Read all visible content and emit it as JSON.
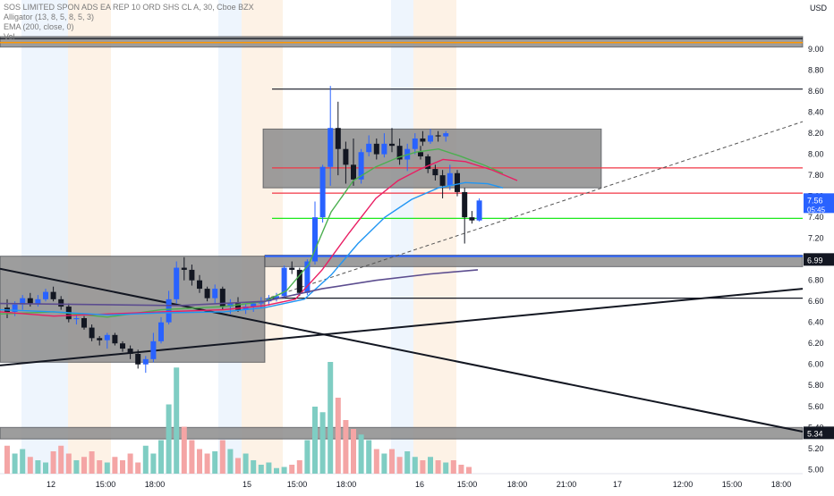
{
  "legend": {
    "title": "SOS LIMITED SPON ADS EA REP 10 ORD SHS CL A, 30, Cboe BZX",
    "alligator": "Alligator (13, 8, 5, 8, 5, 3)",
    "ema": "EMA (200, close, 0)",
    "vol": "Vol"
  },
  "currency": "USD",
  "colors": {
    "up": "#2962ff",
    "down": "#131722",
    "vol_up": "#7fcdc3",
    "vol_down": "#f4a5a5",
    "jaw": "#2196f3",
    "teeth": "#e91e63",
    "lips": "#4caf50",
    "ema": "#5c4d8f",
    "zone": "#8c8c8c",
    "hline_red": "#f23645",
    "hline_green": "#00e600",
    "premarket": "#eef5fd",
    "afterhours": "#fdf2e6"
  },
  "chart_data": {
    "type": "candlestick",
    "timeframe": "30",
    "symbol": "SOS LIMITED SPON ADS EA REP 10 ORD SHS CL A",
    "exchange": "Cboe BZX",
    "y_axis": {
      "ticks": [
        "5.00",
        "5.20",
        "5.40",
        "5.60",
        "5.80",
        "6.00",
        "6.20",
        "6.40",
        "6.60",
        "6.80",
        "7.00",
        "7.20",
        "7.40",
        "7.60",
        "7.80",
        "8.00",
        "8.20",
        "8.40",
        "8.60",
        "8.80",
        "9.00"
      ],
      "range": [
        4.96,
        9.4
      ]
    },
    "x_axis": {
      "labels": [
        "12",
        "15:00",
        "18:00",
        "15",
        "15:00",
        "18:00",
        "16",
        "15:00",
        "18:00",
        "21:00",
        "17",
        "12:00",
        "15:00",
        "18:00"
      ]
    },
    "last_price": {
      "value": "7.56",
      "countdown": "05:45"
    },
    "price_labels": [
      "6.99",
      "5.34"
    ],
    "candles": [
      [
        6.54,
        6.62,
        6.44,
        6.5
      ],
      [
        6.5,
        6.6,
        6.46,
        6.57
      ],
      [
        6.57,
        6.66,
        6.52,
        6.63
      ],
      [
        6.63,
        6.68,
        6.55,
        6.58
      ],
      [
        6.58,
        6.66,
        6.55,
        6.62
      ],
      [
        6.62,
        6.72,
        6.6,
        6.69
      ],
      [
        6.69,
        6.74,
        6.6,
        6.62
      ],
      [
        6.62,
        6.65,
        6.52,
        6.55
      ],
      [
        6.55,
        6.58,
        6.4,
        6.43
      ],
      [
        6.43,
        6.47,
        6.38,
        6.44
      ],
      [
        6.44,
        6.46,
        6.33,
        6.35
      ],
      [
        6.35,
        6.38,
        6.22,
        6.25
      ],
      [
        6.25,
        6.27,
        6.18,
        6.23
      ],
      [
        6.23,
        6.3,
        6.15,
        6.28
      ],
      [
        6.28,
        6.3,
        6.18,
        6.2
      ],
      [
        6.2,
        6.22,
        6.12,
        6.15
      ],
      [
        6.15,
        6.18,
        6.05,
        6.1
      ],
      [
        6.1,
        6.14,
        5.96,
        6.0
      ],
      [
        6.0,
        6.08,
        5.92,
        6.05
      ],
      [
        6.05,
        6.3,
        6.02,
        6.22
      ],
      [
        6.22,
        6.45,
        6.2,
        6.4
      ],
      [
        6.4,
        6.7,
        6.38,
        6.62
      ],
      [
        6.62,
        6.98,
        6.58,
        6.92
      ],
      [
        6.92,
        7.02,
        6.8,
        6.9
      ],
      [
        6.9,
        6.95,
        6.75,
        6.8
      ],
      [
        6.8,
        6.85,
        6.68,
        6.72
      ],
      [
        6.72,
        6.74,
        6.6,
        6.63
      ],
      [
        6.63,
        6.76,
        6.58,
        6.72
      ],
      [
        6.72,
        6.74,
        6.52,
        6.55
      ],
      [
        6.55,
        6.62,
        6.48,
        6.58
      ],
      [
        6.58,
        6.64,
        6.5,
        6.52
      ],
      [
        6.52,
        6.58,
        6.48,
        6.55
      ],
      [
        6.55,
        6.6,
        6.5,
        6.58
      ],
      [
        6.58,
        6.64,
        6.54,
        6.6
      ],
      [
        6.6,
        6.66,
        6.56,
        6.63
      ],
      [
        6.63,
        6.68,
        6.6,
        6.65
      ],
      [
        6.65,
        6.94,
        6.63,
        6.92
      ],
      [
        6.92,
        6.98,
        6.86,
        6.9
      ],
      [
        6.9,
        6.92,
        6.65,
        6.68
      ],
      [
        6.68,
        7.0,
        6.66,
        6.98
      ],
      [
        6.98,
        7.55,
        6.95,
        7.4
      ],
      [
        7.4,
        7.9,
        7.35,
        7.88
      ],
      [
        7.88,
        8.65,
        7.7,
        8.25
      ],
      [
        8.25,
        8.5,
        7.8,
        8.05
      ],
      [
        8.05,
        8.12,
        7.72,
        7.9
      ],
      [
        7.9,
        8.15,
        7.7,
        7.76
      ],
      [
        7.76,
        8.05,
        7.72,
        8.02
      ],
      [
        8.02,
        8.18,
        7.98,
        8.1
      ],
      [
        8.1,
        8.15,
        7.95,
        8.0
      ],
      [
        8.0,
        8.2,
        7.97,
        8.1
      ],
      [
        8.1,
        8.25,
        8.02,
        8.08
      ],
      [
        8.08,
        8.15,
        7.9,
        7.95
      ],
      [
        7.95,
        8.1,
        7.84,
        8.05
      ],
      [
        8.05,
        8.2,
        8.0,
        8.15
      ],
      [
        8.15,
        8.22,
        8.08,
        8.12
      ],
      [
        8.12,
        8.24,
        8.1,
        8.18
      ],
      [
        8.18,
        8.22,
        8.12,
        8.17
      ],
      [
        8.17,
        8.22,
        8.12,
        8.2
      ]
    ],
    "candles_day3": [
      [
        8.02,
        8.08,
        7.95,
        7.98
      ],
      [
        7.98,
        8.0,
        7.82,
        7.86
      ],
      [
        7.86,
        7.9,
        7.75,
        7.8
      ],
      [
        7.8,
        7.85,
        7.58,
        7.7
      ],
      [
        7.7,
        7.9,
        7.66,
        7.82
      ],
      [
        7.82,
        7.85,
        7.6,
        7.64
      ],
      [
        7.64,
        7.68,
        7.15,
        7.4
      ],
      [
        7.4,
        7.46,
        7.34,
        7.37
      ],
      [
        7.37,
        7.58,
        7.36,
        7.56
      ]
    ],
    "volume_rel": [
      0.25,
      0.18,
      0.22,
      0.15,
      0.12,
      0.1,
      0.2,
      0.25,
      0.18,
      0.12,
      0.15,
      0.2,
      0.12,
      0.1,
      0.15,
      0.12,
      0.18,
      0.1,
      0.25,
      0.18,
      0.3,
      0.62,
      0.95,
      0.42,
      0.3,
      0.22,
      0.18,
      0.2,
      0.3,
      0.22,
      0.14,
      0.18,
      0.12,
      0.08,
      0.1,
      0.05,
      0.06,
      0.08,
      0.12,
      0.3,
      0.6,
      0.55,
      1.0,
      0.68,
      0.48,
      0.4,
      0.35,
      0.3,
      0.22,
      0.18,
      0.22,
      0.15,
      0.2,
      0.15,
      0.12,
      0.15,
      0.12,
      0.1,
      0.12,
      0.08,
      0.06
    ],
    "horizontal_levels": [
      {
        "price": 9.1,
        "color": "#131722"
      },
      {
        "price": 8.62,
        "color": "#131722"
      },
      {
        "price": 7.87,
        "color": "#f23645"
      },
      {
        "price": 7.63,
        "color": "#f23645"
      },
      {
        "price": 7.39,
        "color": "#00e600"
      },
      {
        "price": 7.03,
        "color": "#2962ff"
      },
      {
        "price": 6.63,
        "color": "#131722"
      }
    ],
    "ema200_points": [
      [
        0.0,
        6.58
      ],
      [
        0.35,
        6.56
      ],
      [
        0.55,
        6.66
      ],
      [
        0.75,
        6.8
      ],
      [
        1.0,
        6.92
      ]
    ]
  }
}
